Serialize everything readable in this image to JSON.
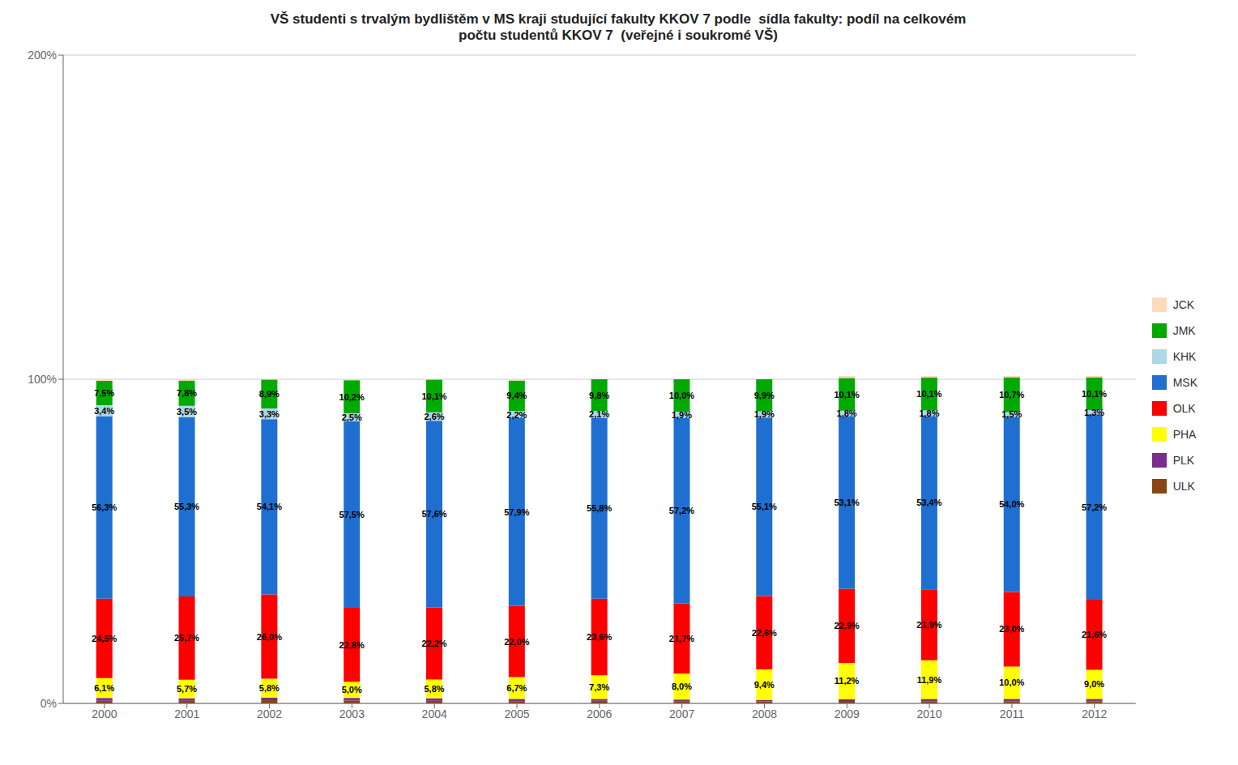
{
  "chart_data": {
    "type": "bar",
    "stacked": true,
    "title": "VŠ studenti s trvalým bydlištěm v MS kraji studující fakulty KKOV 7 podle  sídla fakulty: podíl na celkovém\npočtu studentů KKOV 7  (veřejné i soukromé VŠ)",
    "categories": [
      "2000",
      "2001",
      "2002",
      "2003",
      "2004",
      "2005",
      "2006",
      "2007",
      "2008",
      "2009",
      "2010",
      "2011",
      "2012"
    ],
    "series": [
      {
        "name": "ULK",
        "color": "#8B4513",
        "values": [
          0.8,
          0.8,
          1.0,
          0.9,
          0.8,
          0.7,
          0.8,
          0.7,
          0.6,
          0.5,
          0.6,
          0.6,
          0.6
        ]
      },
      {
        "name": "PLK",
        "color": "#7B2D8B",
        "values": [
          0.9,
          0.8,
          0.8,
          0.8,
          0.8,
          0.7,
          0.6,
          0.5,
          0.5,
          0.8,
          0.8,
          0.8,
          0.8
        ]
      },
      {
        "name": "PHA",
        "color": "#FFFF00",
        "values": [
          6.1,
          5.7,
          5.8,
          5.0,
          5.8,
          6.7,
          7.3,
          8.0,
          9.4,
          11.2,
          11.9,
          10.0,
          9.0
        ],
        "data_labels": true,
        "value_labels": [
          "6,1%",
          "5,7%",
          "5,8%",
          "5,0%",
          "5,8%",
          "6,7%",
          "7,3%",
          "8,0%",
          "9,4%",
          "11,2%",
          "11,9%",
          "10,0%",
          "9,0%"
        ]
      },
      {
        "name": "OLK",
        "color": "#FF0000",
        "values": [
          24.5,
          25.7,
          26.0,
          22.8,
          22.2,
          22.0,
          23.6,
          21.7,
          22.6,
          22.9,
          21.9,
          23.0,
          21.6
        ],
        "data_labels": true,
        "value_labels": [
          "24,5%",
          "25,7%",
          "26,0%",
          "22,8%",
          "22,2%",
          "22,0%",
          "23,6%",
          "21,7%",
          "22,6%",
          "22,9%",
          "21,9%",
          "23,0%",
          "21,6%"
        ]
      },
      {
        "name": "MSK",
        "color": "#1F6FD1",
        "values": [
          56.3,
          55.3,
          54.1,
          57.5,
          57.6,
          57.9,
          55.8,
          57.2,
          55.1,
          53.1,
          53.4,
          54.0,
          57.2
        ],
        "data_labels": true,
        "value_labels": [
          "56,3%",
          "55,3%",
          "54,1%",
          "57,5%",
          "57,6%",
          "57,9%",
          "55,8%",
          "57,2%",
          "55,1%",
          "53,1%",
          "53,4%",
          "54,0%",
          "57,2%"
        ]
      },
      {
        "name": "KHK",
        "color": "#ADD8E6",
        "values": [
          3.4,
          3.5,
          3.3,
          2.5,
          2.6,
          2.2,
          2.1,
          1.9,
          1.9,
          1.8,
          1.8,
          1.5,
          1.3
        ],
        "data_labels": true,
        "value_labels": [
          "3,4%",
          "3,5%",
          "3,3%",
          "2,5%",
          "2,6%",
          "2,2%",
          "2,1%",
          "1,9%",
          "1,9%",
          "1,8%",
          "1,8%",
          "1,5%",
          "1,3%"
        ]
      },
      {
        "name": "JMK",
        "color": "#00AA00",
        "values": [
          7.5,
          7.8,
          8.9,
          10.2,
          10.1,
          9.4,
          9.8,
          10.0,
          9.9,
          10.1,
          10.1,
          10.7,
          10.1
        ],
        "data_labels": true,
        "value_labels": [
          "7,5%",
          "7,8%",
          "8,9%",
          "10,2%",
          "10,1%",
          "9,4%",
          "9,8%",
          "10,0%",
          "9,9%",
          "10,1%",
          "10,1%",
          "10,7%",
          "10,1%"
        ]
      },
      {
        "name": "JCK",
        "color": "#FFDAB9",
        "values": [
          0.5,
          0.4,
          0.1,
          0.3,
          0.1,
          0.4,
          0.0,
          0.0,
          0.0,
          0.6,
          0.5,
          0.4,
          0.4
        ]
      }
    ],
    "ylim": [
      0,
      200
    ],
    "yticks": [
      {
        "value": 0,
        "label": "0%"
      },
      {
        "value": 100,
        "label": "100%"
      },
      {
        "value": 200,
        "label": "200%"
      }
    ],
    "grid": true,
    "legend": "right"
  }
}
